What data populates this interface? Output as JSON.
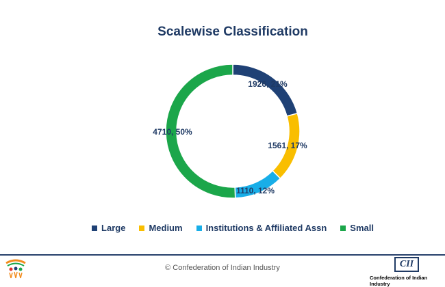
{
  "chart_data": {
    "type": "pie",
    "title": "Scalewise Classification",
    "slices": [
      {
        "name": "Large",
        "value": 1926,
        "label": "1926, 21%",
        "color": "#1f4175"
      },
      {
        "name": "Medium",
        "value": 1561,
        "label": "1561, 17%",
        "color": "#f9be00"
      },
      {
        "name": "Institutions & Affiliated Assn",
        "value": 1110,
        "label": "1110, 12%",
        "color": "#18aee8"
      },
      {
        "name": "Small",
        "value": 4710,
        "label": "4710, 50%",
        "color": "#1ba64a"
      }
    ],
    "legend_position": "bottom"
  },
  "footer": {
    "copyright": "© Confederation of Indian Industry",
    "right_logo_mark": "CII",
    "right_logo_text": "Confederation of Indian Industry"
  }
}
